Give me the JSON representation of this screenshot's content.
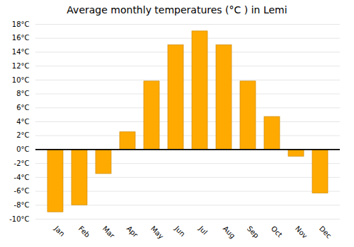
{
  "chart_data": {
    "type": "bar",
    "title": "Average monthly temperatures (°C ) in Lemi",
    "categories": [
      "Jan",
      "Feb",
      "Mar",
      "Apr",
      "May",
      "Jun",
      "Jul",
      "Aug",
      "Sep",
      "Oct",
      "Nov",
      "Dec"
    ],
    "values": [
      -9.0,
      -8.0,
      -3.5,
      2.5,
      9.8,
      15.0,
      17.0,
      15.0,
      9.8,
      4.7,
      -1.0,
      -6.3
    ],
    "color": "#FFAA00",
    "ylim": [
      -10,
      18
    ],
    "yticks": [
      {
        "value": -10,
        "label": "-10°C"
      },
      {
        "value": -8,
        "label": "-8°C"
      },
      {
        "value": -6,
        "label": "-6°C"
      },
      {
        "value": -4,
        "label": "-4°C"
      },
      {
        "value": -2,
        "label": "-2°C"
      },
      {
        "value": 0,
        "label": "0°C"
      },
      {
        "value": 2,
        "label": "2°C"
      },
      {
        "value": 4,
        "label": "4°C"
      },
      {
        "value": 6,
        "label": "6°C"
      },
      {
        "value": 8,
        "label": "8°C"
      },
      {
        "value": 10,
        "label": "10°C"
      },
      {
        "value": 12,
        "label": "12°C"
      },
      {
        "value": 14,
        "label": "14°C"
      },
      {
        "value": 16,
        "label": "16°C"
      },
      {
        "value": 18,
        "label": "18°C"
      }
    ],
    "grid": true
  }
}
